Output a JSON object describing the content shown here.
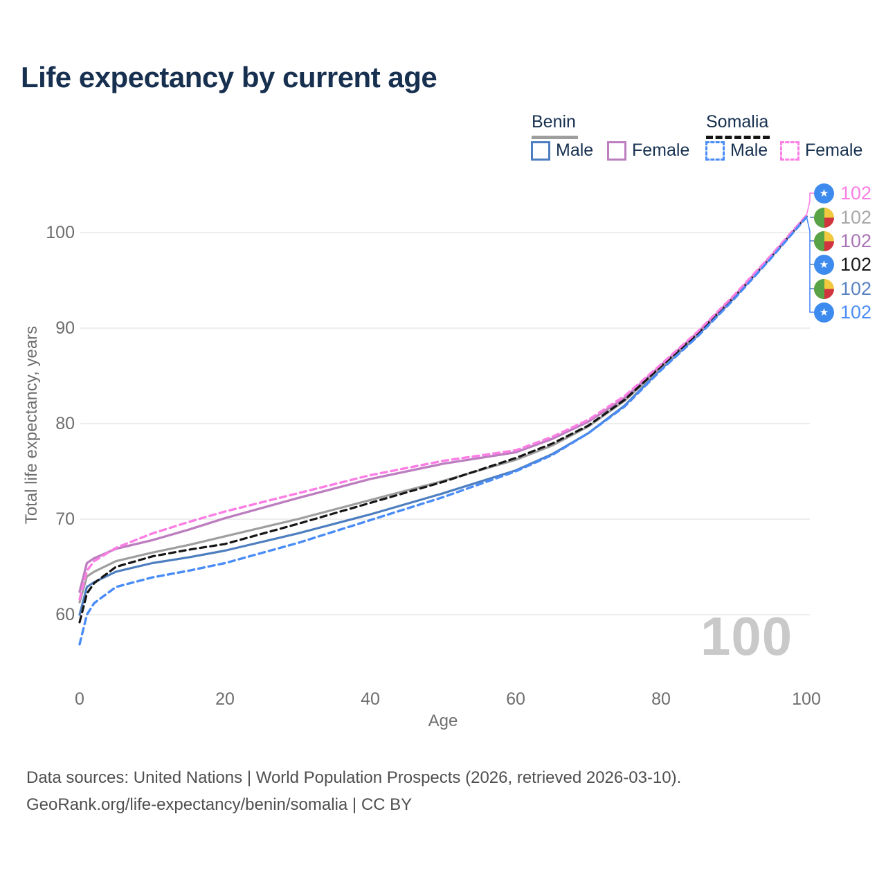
{
  "title": "Life expectancy by current age",
  "legend": {
    "benin": {
      "label": "Benin",
      "male": "Male",
      "female": "Female"
    },
    "somalia": {
      "label": "Somalia",
      "male": "Male",
      "female": "Female"
    }
  },
  "axes": {
    "x": {
      "label": "Age",
      "ticks": [
        "0",
        "20",
        "40",
        "60",
        "80",
        "100"
      ]
    },
    "y": {
      "label": "Total life expectancy, years",
      "ticks": [
        "100",
        "90",
        "80",
        "70",
        "60"
      ]
    }
  },
  "watermark": "100",
  "right_labels": [
    {
      "flag": "somalia",
      "value": "102",
      "color": "#fc7ee4"
    },
    {
      "flag": "benin",
      "value": "102",
      "color": "#a8a8a8"
    },
    {
      "flag": "benin",
      "value": "102",
      "color": "#a974b6"
    },
    {
      "flag": "somalia",
      "value": "102",
      "color": "#1a1a1a"
    },
    {
      "flag": "benin",
      "value": "102",
      "color": "#5a82c2"
    },
    {
      "flag": "somalia",
      "value": "102",
      "color": "#4a8cf7"
    }
  ],
  "footer": {
    "line1": "Data sources: United Nations | World Population Prospects (2026, retrieved 2026-03-10).",
    "line2": "GeoRank.org/life-expectancy/benin/somalia | CC BY"
  },
  "chart_data": {
    "type": "line",
    "title": "Life expectancy by current age",
    "xlabel": "Age",
    "ylabel": "Total life expectancy, years",
    "xlim": [
      0,
      100
    ],
    "ylim": [
      55,
      104
    ],
    "grid": "horizontal",
    "legend_position": "top-right",
    "ytick_values": [
      100,
      90,
      80,
      70,
      60
    ],
    "xtick_values": [
      0,
      20,
      40,
      60,
      80,
      100
    ],
    "x": [
      0,
      1,
      2,
      5,
      10,
      15,
      20,
      30,
      40,
      50,
      60,
      65,
      70,
      75,
      80,
      85,
      90,
      95,
      100
    ],
    "series": [
      {
        "id": "benin_male",
        "name": "Benin Male",
        "country": "Benin",
        "sex": "male",
        "color": "#4d7ebf",
        "dash": false,
        "values": [
          60.0,
          62.9,
          63.4,
          64.5,
          65.4,
          66.0,
          66.7,
          68.5,
          70.5,
          72.7,
          75.1,
          76.8,
          79.0,
          81.9,
          85.7,
          89.2,
          93.1,
          97.3,
          101.7
        ]
      },
      {
        "id": "benin_both",
        "name": "Benin Both sexes",
        "country": "Benin",
        "sex": "both",
        "color": "#9e9e9e",
        "dash": false,
        "values": [
          61.3,
          64.0,
          64.5,
          65.6,
          66.5,
          67.3,
          68.2,
          70.0,
          72.0,
          74.0,
          76.2,
          77.7,
          79.7,
          82.4,
          85.9,
          89.3,
          93.2,
          97.3,
          101.7
        ]
      },
      {
        "id": "benin_female",
        "name": "Benin Female",
        "country": "Benin",
        "sex": "female",
        "color": "#bd7ec0",
        "dash": false,
        "values": [
          62.4,
          65.4,
          65.9,
          66.9,
          67.8,
          68.9,
          70.1,
          72.2,
          74.2,
          75.8,
          77.0,
          78.4,
          80.2,
          82.7,
          86.1,
          89.5,
          93.3,
          97.4,
          101.7
        ]
      },
      {
        "id": "somalia_both",
        "name": "Somalia Both sexes",
        "country": "Somalia",
        "sex": "both",
        "color": "#151515",
        "dash": true,
        "values": [
          59.2,
          62.2,
          63.3,
          65.0,
          66.1,
          66.8,
          67.4,
          69.5,
          71.7,
          73.9,
          76.4,
          77.9,
          79.8,
          82.5,
          86.0,
          89.4,
          93.2,
          97.3,
          101.7
        ]
      },
      {
        "id": "somalia_female",
        "name": "Somalia Female",
        "country": "Somalia",
        "sex": "female",
        "color": "#fc7ee4",
        "dash": true,
        "values": [
          61.6,
          64.6,
          65.6,
          67.0,
          68.5,
          69.7,
          70.8,
          72.7,
          74.6,
          76.1,
          77.2,
          78.6,
          80.4,
          82.9,
          86.2,
          89.6,
          93.4,
          97.5,
          101.8
        ]
      },
      {
        "id": "somalia_male",
        "name": "Somalia Male",
        "country": "Somalia",
        "sex": "male",
        "color": "#4a8cf7",
        "dash": true,
        "values": [
          56.9,
          60.0,
          61.2,
          62.9,
          63.9,
          64.6,
          65.4,
          67.5,
          69.9,
          72.3,
          75.0,
          76.7,
          79.0,
          81.8,
          85.6,
          89.1,
          93.0,
          97.2,
          101.6
        ]
      }
    ],
    "end_labels": [
      {
        "series": "somalia_female",
        "value": 102
      },
      {
        "series": "benin_both",
        "value": 102
      },
      {
        "series": "benin_female",
        "value": 102
      },
      {
        "series": "somalia_both",
        "value": 102
      },
      {
        "series": "benin_male",
        "value": 102
      },
      {
        "series": "somalia_male",
        "value": 102
      }
    ]
  }
}
